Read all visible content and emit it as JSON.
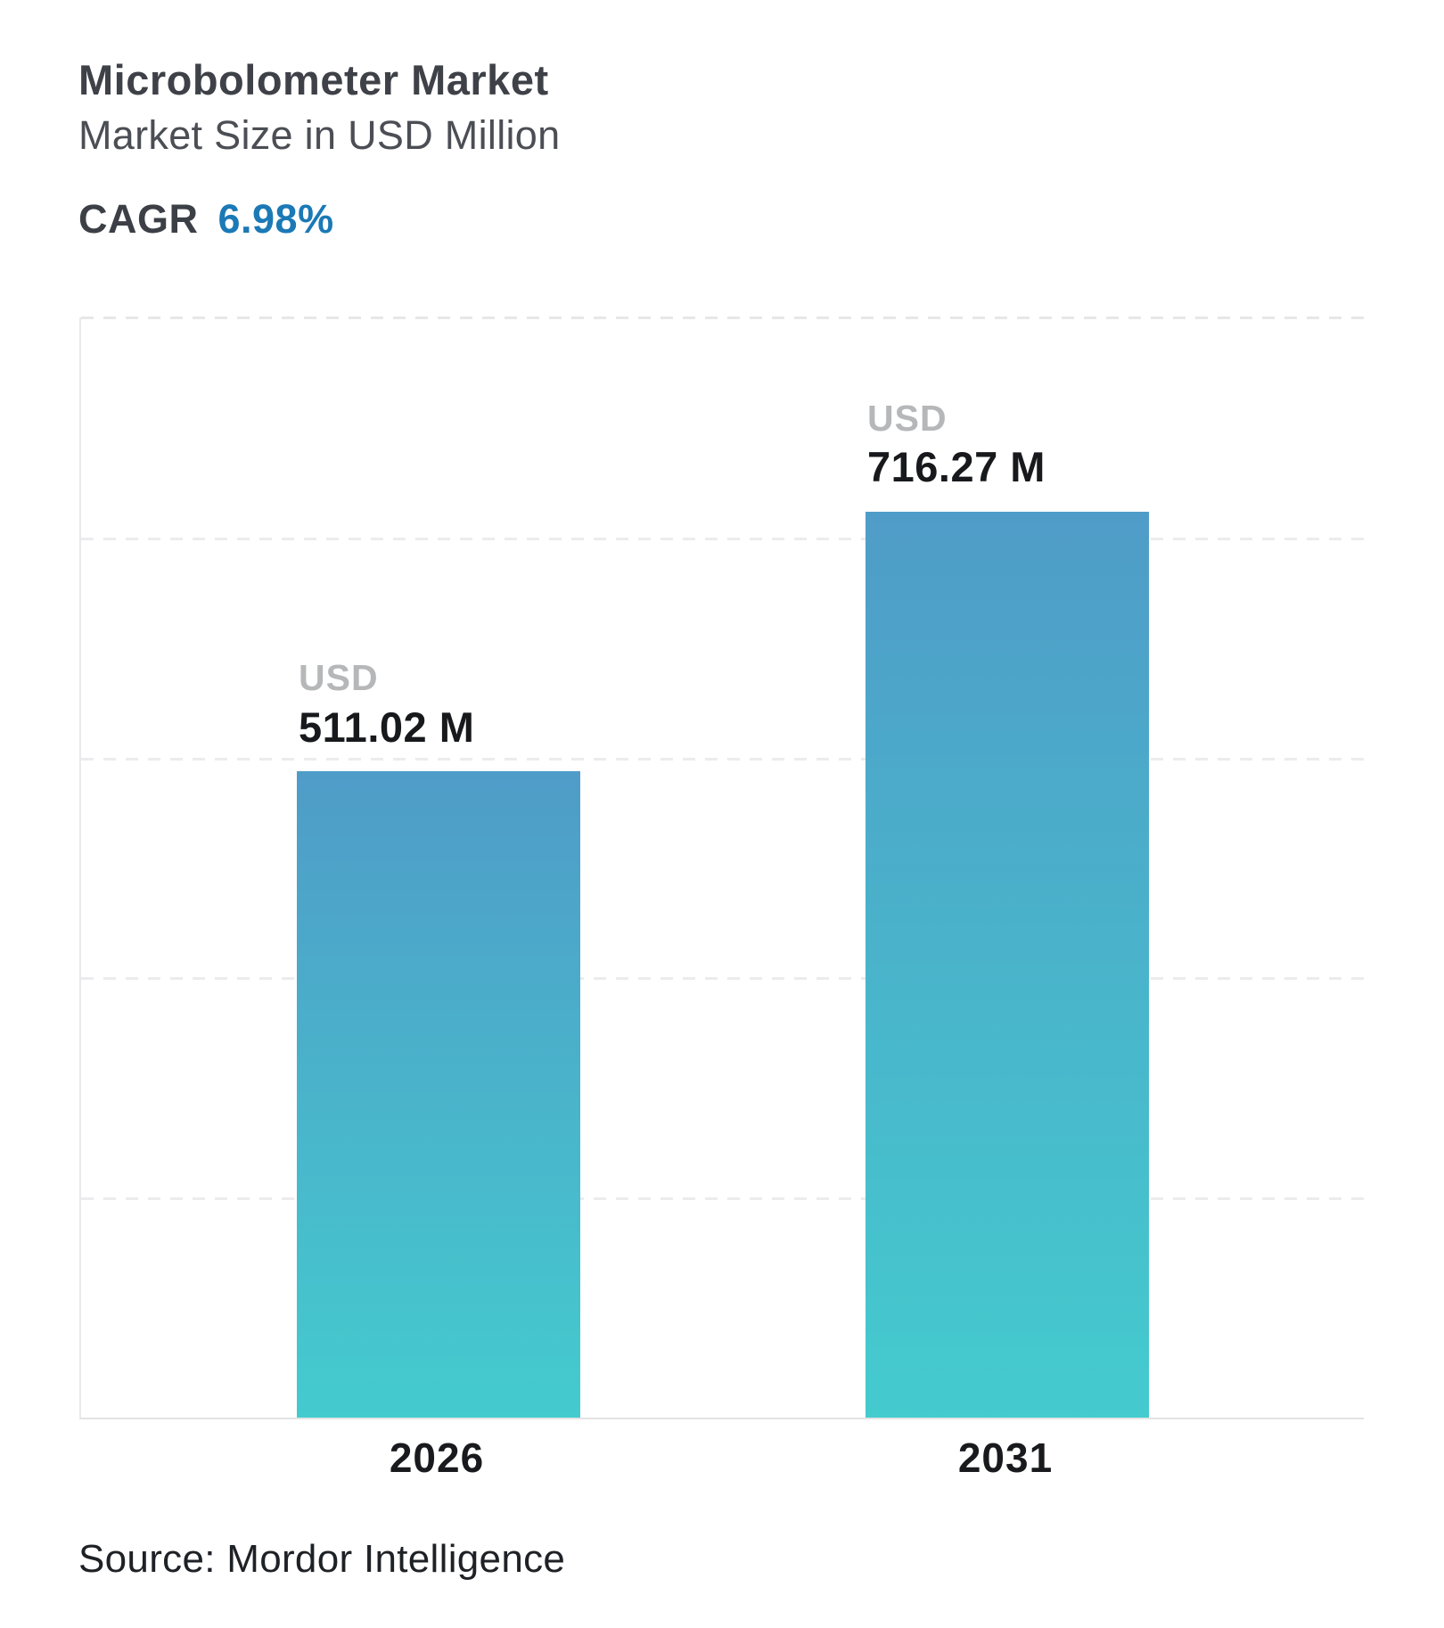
{
  "header": {
    "title": "Microbolometer Market",
    "subtitle": "Market Size in USD Million",
    "cagr_label": "CAGR",
    "cagr_value": "6.98%"
  },
  "chart_data": {
    "type": "bar",
    "title": "Microbolometer Market",
    "subtitle": "Market Size in USD Million",
    "cagr": "6.98%",
    "categories": [
      "2026",
      "2031"
    ],
    "values": [
      511.02,
      716.27
    ],
    "unit_label": "USD",
    "value_labels": [
      "511.02 M",
      "716.27 M"
    ],
    "xlabel": "",
    "ylabel": "Market Size in USD Million",
    "ylim": [
      0,
      870
    ],
    "grid": "horizontal-dashed",
    "legend": "none",
    "colors": {
      "bar_gradient_top": "#4f9cc8",
      "bar_gradient_bottom": "#44cbce",
      "accent_blue": "#1b79b6",
      "usd_label_gray": "#b5b7b9",
      "grid_line": "#ececee"
    }
  },
  "footer": {
    "source": "Source: Mordor Intelligence"
  }
}
